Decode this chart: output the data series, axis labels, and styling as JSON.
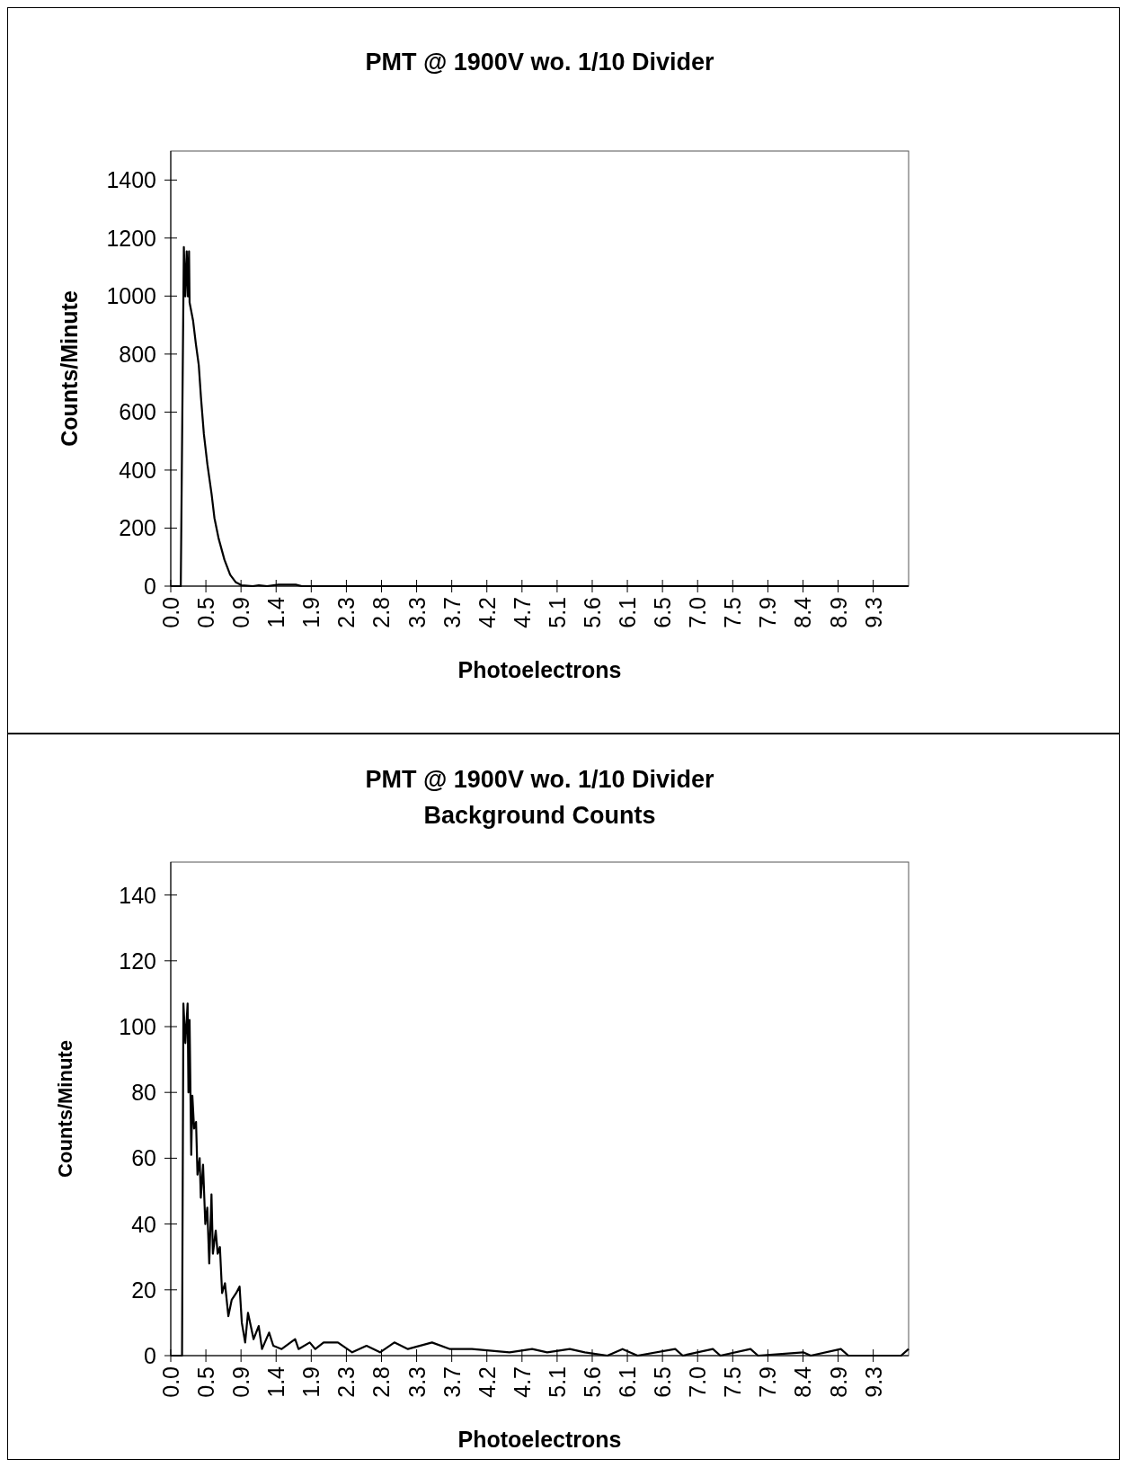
{
  "chart_data": [
    {
      "type": "line",
      "title": "PMT @ 1900V wo. 1/10 Divider",
      "xlabel": "Photoelectrons",
      "ylabel": "Counts/Minute",
      "xlim": [
        0,
        9.8
      ],
      "ylim": [
        0,
        1500
      ],
      "yticks": [
        0,
        200,
        400,
        600,
        800,
        1000,
        1200,
        1400
      ],
      "xticks": [
        {
          "value": 0,
          "label": "0.0"
        },
        {
          "value": 0.4665,
          "label": "0.5"
        },
        {
          "value": 0.933,
          "label": "0.9"
        },
        {
          "value": 1.3995,
          "label": "1.4"
        },
        {
          "value": 1.866,
          "label": "1.9"
        },
        {
          "value": 2.3325,
          "label": "2.3"
        },
        {
          "value": 2.799,
          "label": "2.8"
        },
        {
          "value": 3.2655,
          "label": "3.3"
        },
        {
          "value": 3.732,
          "label": "3.7"
        },
        {
          "value": 4.1985,
          "label": "4.2"
        },
        {
          "value": 4.665,
          "label": "4.7"
        },
        {
          "value": 5.1315,
          "label": "5.1"
        },
        {
          "value": 5.598,
          "label": "5.6"
        },
        {
          "value": 6.0645,
          "label": "6.1"
        },
        {
          "value": 6.531,
          "label": "6.5"
        },
        {
          "value": 6.9975,
          "label": "7.0"
        },
        {
          "value": 7.464,
          "label": "7.5"
        },
        {
          "value": 7.9305,
          "label": "7.9"
        },
        {
          "value": 8.397,
          "label": "8.4"
        },
        {
          "value": 8.8635,
          "label": "8.9"
        },
        {
          "value": 9.33,
          "label": "9.3"
        }
      ],
      "grid": false,
      "line_style": "solid",
      "series": [
        {
          "color": "#000000",
          "x": [
            0,
            0.133,
            0.174,
            0.193,
            0.212,
            0.228,
            0.243,
            0.25,
            0.296,
            0.334,
            0.372,
            0.402,
            0.44,
            0.486,
            0.542,
            0.58,
            0.637,
            0.713,
            0.789,
            0.865,
            0.94,
            1.09,
            1.17,
            1.28,
            1.43,
            1.66,
            1.74,
            9.8
          ],
          "values": [
            0,
            0,
            1169,
            999,
            1154,
            999,
            1154,
            978,
            916,
            834,
            762,
            648,
            524,
            421,
            318,
            235,
            163,
            91,
            39,
            13,
            3,
            0,
            3,
            0,
            5,
            5,
            0,
            0
          ]
        }
      ]
    },
    {
      "type": "line",
      "title": "PMT @ 1900V wo. 1/10 Divider",
      "subtitle": "Background Counts",
      "xlabel": "Photoelectrons",
      "ylabel": "Counts/Minute",
      "xlim": [
        0,
        9.8
      ],
      "ylim": [
        0,
        150
      ],
      "yticks": [
        0,
        20,
        40,
        60,
        80,
        100,
        120,
        140
      ],
      "xticks": [
        {
          "value": 0,
          "label": "0.0"
        },
        {
          "value": 0.4665,
          "label": "0.5"
        },
        {
          "value": 0.933,
          "label": "0.9"
        },
        {
          "value": 1.3995,
          "label": "1.4"
        },
        {
          "value": 1.866,
          "label": "1.9"
        },
        {
          "value": 2.3325,
          "label": "2.3"
        },
        {
          "value": 2.799,
          "label": "2.8"
        },
        {
          "value": 3.2655,
          "label": "3.3"
        },
        {
          "value": 3.732,
          "label": "3.7"
        },
        {
          "value": 4.1985,
          "label": "4.2"
        },
        {
          "value": 4.665,
          "label": "4.7"
        },
        {
          "value": 5.1315,
          "label": "5.1"
        },
        {
          "value": 5.598,
          "label": "5.6"
        },
        {
          "value": 6.0645,
          "label": "6.1"
        },
        {
          "value": 6.531,
          "label": "6.5"
        },
        {
          "value": 6.9975,
          "label": "7.0"
        },
        {
          "value": 7.464,
          "label": "7.5"
        },
        {
          "value": 7.9305,
          "label": "7.9"
        },
        {
          "value": 8.397,
          "label": "8.4"
        },
        {
          "value": 8.8635,
          "label": "8.9"
        },
        {
          "value": 9.33,
          "label": "9.3"
        }
      ],
      "grid": false,
      "line_style": "solid",
      "series": [
        {
          "color": "#000000",
          "x": [
            0,
            0.15,
            0.168,
            0.194,
            0.224,
            0.235,
            0.25,
            0.272,
            0.287,
            0.31,
            0.336,
            0.355,
            0.384,
            0.399,
            0.429,
            0.459,
            0.485,
            0.511,
            0.541,
            0.56,
            0.597,
            0.623,
            0.653,
            0.682,
            0.72,
            0.765,
            0.81,
            0.869,
            0.914,
            0.944,
            0.988,
            1.026,
            1.063,
            1.1,
            1.168,
            1.212,
            1.306,
            1.362,
            1.473,
            1.652,
            1.697,
            1.846,
            1.92,
            2.03,
            2.22,
            2.41,
            2.6,
            2.78,
            2.97,
            3.15,
            3.47,
            3.71,
            4.0,
            4.5,
            4.8,
            5.0,
            5.3,
            5.5,
            5.8,
            6.0,
            6.2,
            6.7,
            6.8,
            7.2,
            7.3,
            7.7,
            7.8,
            8.4,
            8.5,
            8.9,
            9.0,
            9.7,
            9.8
          ],
          "values": [
            0,
            0,
            107,
            95,
            107,
            80,
            102,
            61,
            79,
            69,
            71,
            55,
            60,
            48,
            58,
            40,
            45,
            28,
            49,
            31,
            38,
            31,
            33,
            19,
            22,
            12,
            17,
            19,
            21,
            10,
            4,
            13,
            9,
            5,
            9,
            2,
            7,
            3,
            2,
            5,
            2,
            4,
            2,
            4,
            4,
            1,
            3,
            1,
            4,
            2,
            4,
            2,
            2,
            1,
            2,
            1,
            2,
            1,
            0,
            2,
            0,
            2,
            0,
            2,
            0,
            2,
            0,
            1,
            0,
            2,
            0,
            0,
            2
          ]
        }
      ]
    }
  ]
}
